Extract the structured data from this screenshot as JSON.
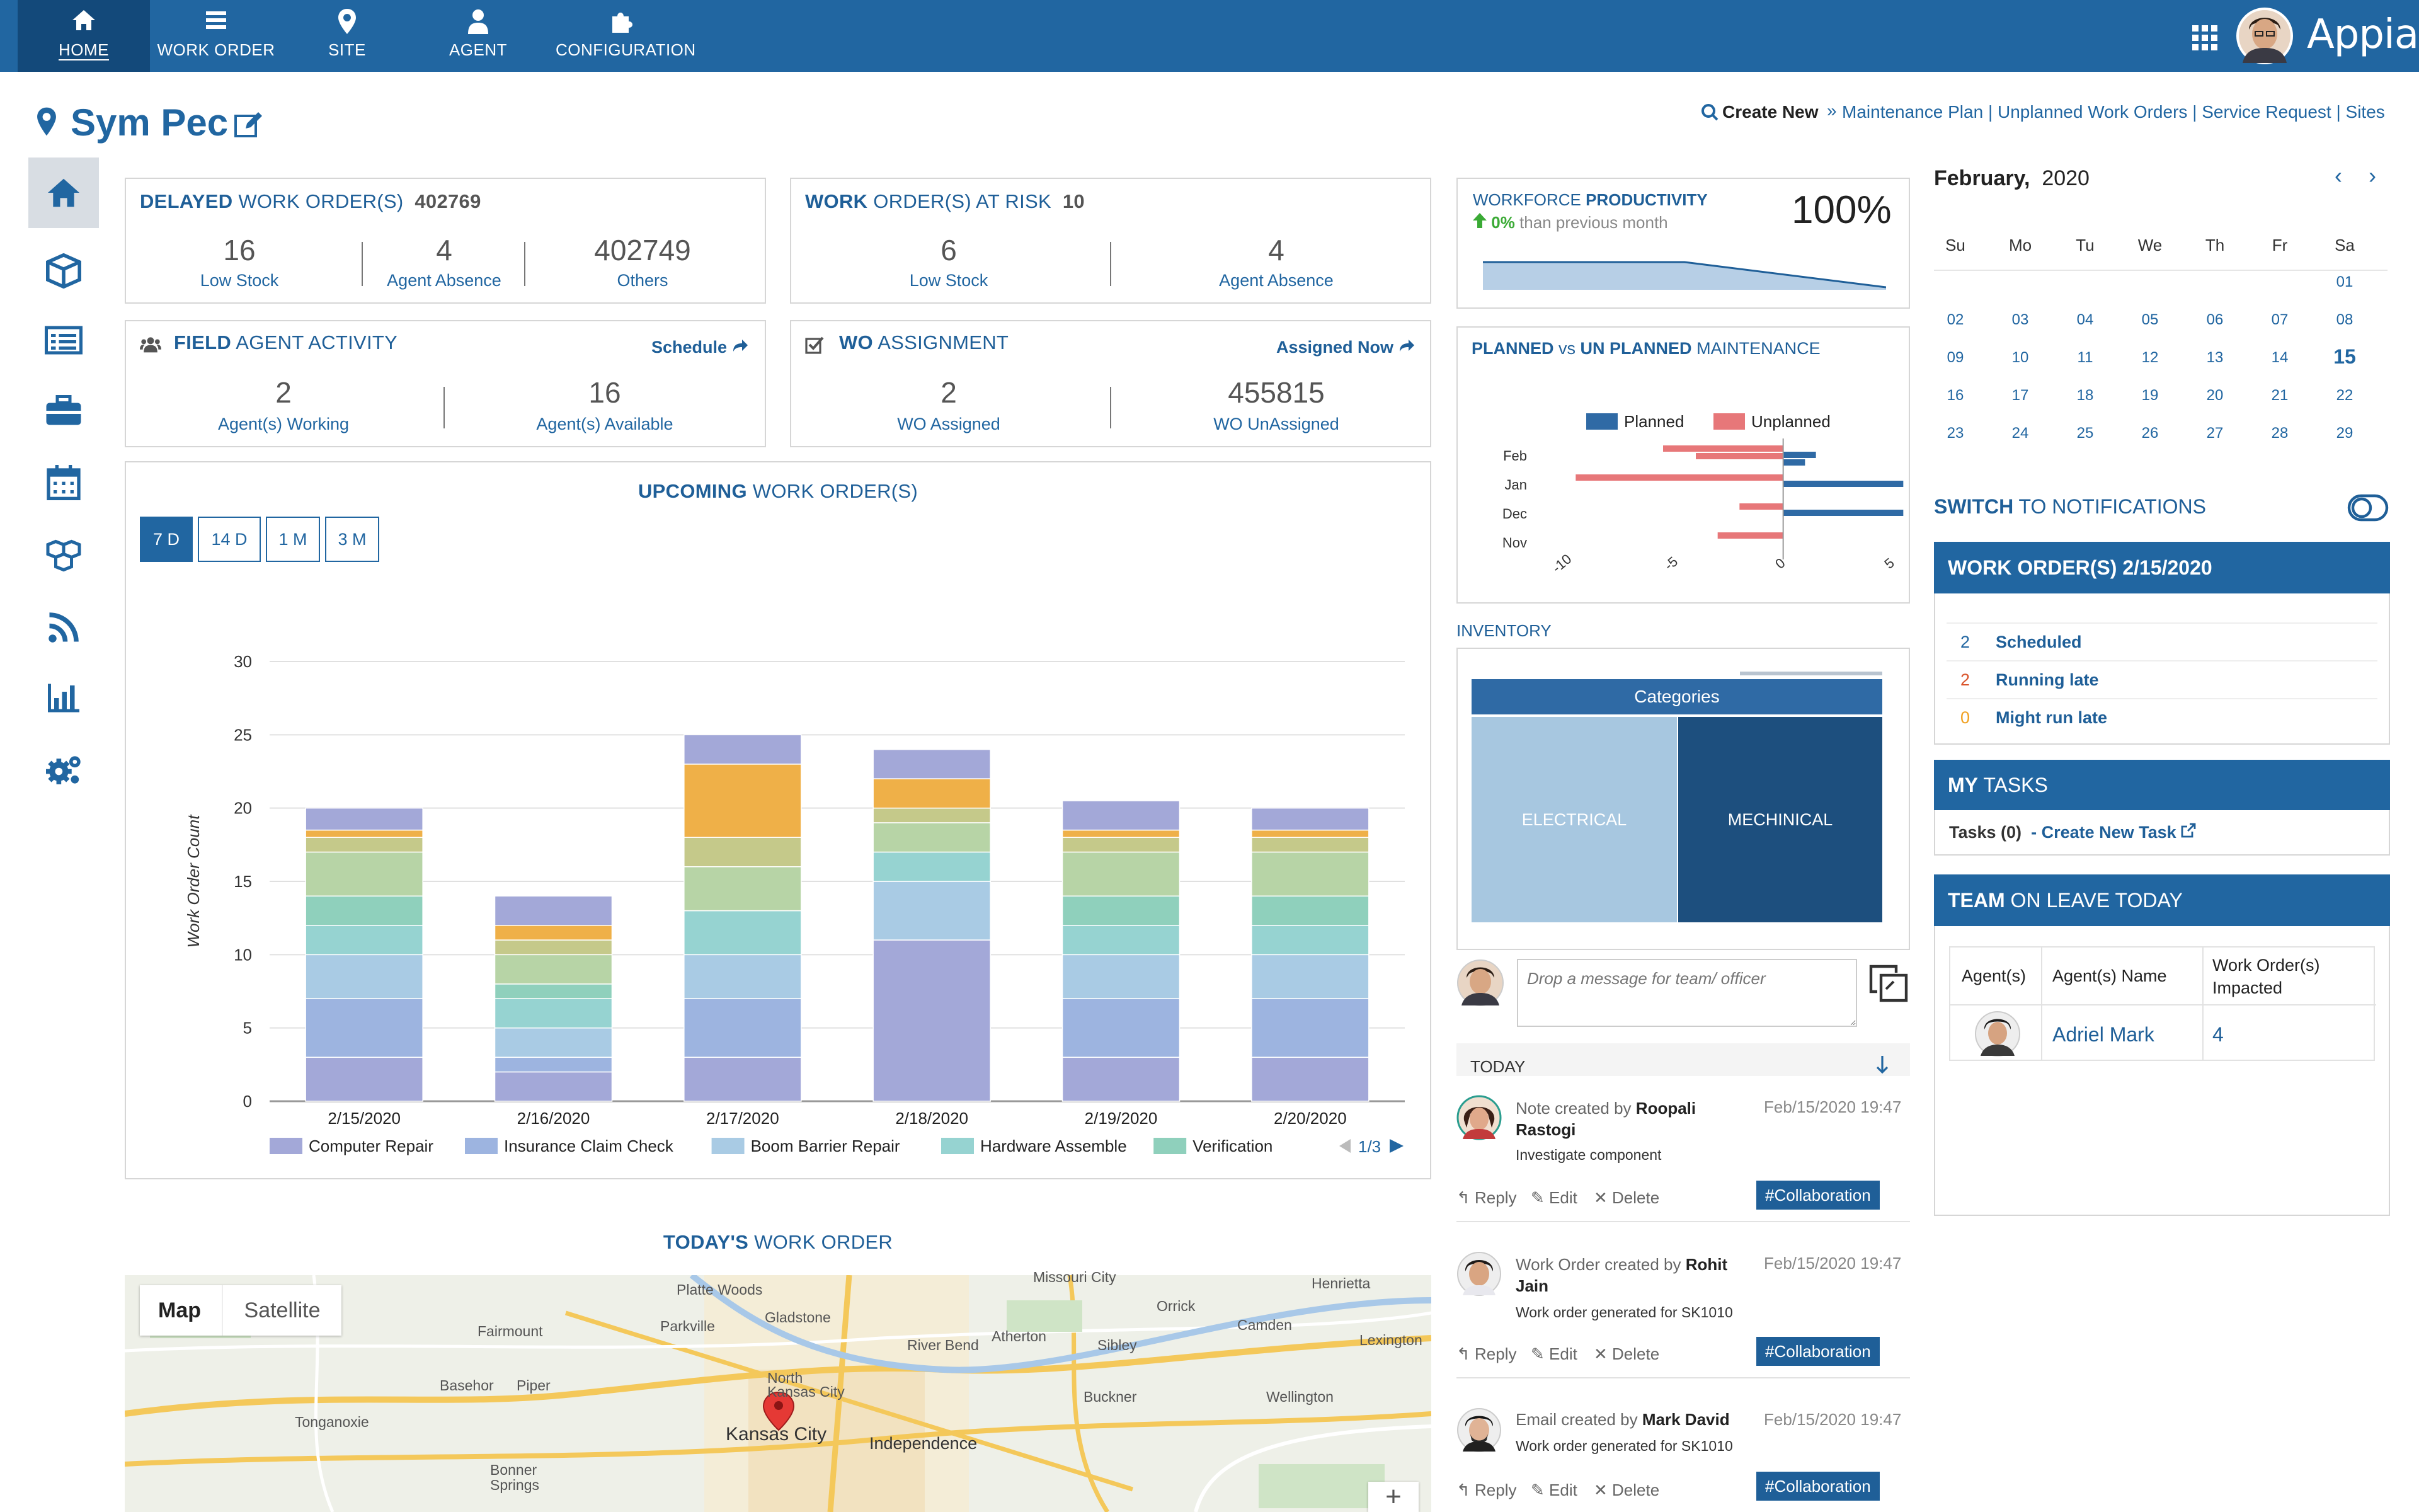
{
  "nav": {
    "items": [
      {
        "label": "HOME",
        "icon": "home-icon"
      },
      {
        "label": "WORK ORDER",
        "icon": "list-icon"
      },
      {
        "label": "SITE",
        "icon": "location-pin-icon"
      },
      {
        "label": "AGENT",
        "icon": "person-icon"
      },
      {
        "label": "CONFIGURATION",
        "icon": "puzzle-icon"
      }
    ],
    "brand": "Appian"
  },
  "site": {
    "title": "Sym Pec"
  },
  "create": {
    "label": "Create New",
    "sep": "»",
    "links": [
      "Maintenance Plan",
      "Unplanned Work Orders",
      "Service Request",
      "Sites"
    ],
    "pipe": "|"
  },
  "delayed": {
    "title_bold": "DELAYED",
    "title_rest": "WORK ORDER(S)",
    "total": "402769",
    "stats": [
      {
        "value": "16",
        "label": "Low Stock"
      },
      {
        "value": "4",
        "label": "Agent Absence"
      },
      {
        "value": "402749",
        "label": "Others"
      }
    ]
  },
  "atrisk": {
    "title_bold": "WORK",
    "title_rest": "ORDER(S) AT RISK",
    "total": "10",
    "stats": [
      {
        "value": "6",
        "label": "Low Stock"
      },
      {
        "value": "4",
        "label": "Agent Absence"
      }
    ]
  },
  "field": {
    "title_bold": "FIELD",
    "title_rest": "AGENT ACTIVITY",
    "action": "Schedule",
    "stats": [
      {
        "value": "2",
        "label": "Agent(s) Working"
      },
      {
        "value": "16",
        "label": "Agent(s) Available"
      }
    ]
  },
  "assign": {
    "title_bold": "WO",
    "title_rest": "ASSIGNMENT",
    "action": "Assigned Now",
    "stats": [
      {
        "value": "2",
        "label": "WO Assigned"
      },
      {
        "value": "455815",
        "label": "WO UnAssigned"
      }
    ]
  },
  "upcoming": {
    "title_bold": "UPCOMING",
    "title_rest": "WORK ORDER(S)",
    "tabs": [
      "7 D",
      "14 D",
      "1 M",
      "3 M"
    ],
    "pager": "1/3"
  },
  "chart_data": [
    {
      "type": "bar",
      "stacked": true,
      "ylabel": "Work Order Count",
      "ylim": [
        0,
        30
      ],
      "yticks": [
        0,
        5,
        10,
        15,
        20,
        25,
        30
      ],
      "categories": [
        "2/15/2020",
        "2/16/2020",
        "2/17/2020",
        "2/18/2020",
        "2/19/2020",
        "2/20/2020"
      ],
      "legend_position": "bottom",
      "grid": true,
      "series": [
        {
          "name": "Computer Repair",
          "color": "#a3a8d8",
          "values": [
            3,
            2,
            3,
            11,
            3,
            3
          ]
        },
        {
          "name": "Insurance Claim Check",
          "color": "#9db4e0",
          "values": [
            4,
            1,
            4,
            0,
            4,
            4
          ]
        },
        {
          "name": "Boom Barrier Repair",
          "color": "#a9cbe4",
          "values": [
            3,
            2,
            3,
            4,
            3,
            3
          ]
        },
        {
          "name": "Hardware Assemble",
          "color": "#96d3d1",
          "values": [
            2,
            2,
            3,
            2,
            2,
            2
          ]
        },
        {
          "name": "Verification",
          "color": "#8fd0bc",
          "values": [
            2,
            1,
            0,
            0,
            2,
            2
          ]
        },
        {
          "name": "",
          "color": "#b7d4a6",
          "values": [
            3,
            2,
            3,
            2,
            3,
            3
          ]
        },
        {
          "name": "",
          "color": "#c5c98a",
          "values": [
            1,
            1,
            2,
            1,
            1,
            1
          ]
        },
        {
          "name": "",
          "color": "#efb048",
          "values": [
            0.5,
            1,
            5,
            2,
            0.5,
            0.5
          ]
        },
        {
          "name": "",
          "color": "#a3a8d8",
          "values": [
            1.5,
            2,
            2,
            2,
            2,
            1.5
          ]
        }
      ]
    },
    {
      "type": "bar",
      "orientation": "horizontal",
      "title_bold_1": "PLANNED",
      "title_mid": "vs",
      "title_bold_2": "UN PLANNED",
      "title_rest": "MAINTENANCE",
      "categories": [
        "Feb",
        "Jan",
        "Dec",
        "Nov"
      ],
      "xlim": [
        -10,
        5
      ],
      "xticks": [
        -10,
        -5,
        0,
        5
      ],
      "legend_position": "top",
      "series": [
        {
          "name": "Planned",
          "color": "#2f6aa5",
          "values": [
            [
              1.5,
              1.0
            ],
            [
              5.5
            ],
            [
              5.5
            ],
            [
              0
            ]
          ]
        },
        {
          "name": "Unplanned",
          "color": "#e77779",
          "values": [
            [
              -5.5,
              -4.0
            ],
            [
              -9.5
            ],
            [
              -2.0
            ],
            [
              -3.0
            ]
          ]
        }
      ]
    }
  ],
  "productivity": {
    "title_rest": "WORKFORCE",
    "title_bold": "PRODUCTIVITY",
    "change": "0%",
    "change_text": "than previous month",
    "value": "100%"
  },
  "inventory": {
    "label": "INVENTORY",
    "header": "Categories",
    "cells": [
      "ELECTRICAL",
      "MECHINICAL"
    ]
  },
  "calendar": {
    "month": "February,",
    "year": "2020",
    "days_of_week": [
      "Su",
      "Mo",
      "Tu",
      "We",
      "Th",
      "Fr",
      "Sa"
    ],
    "weeks": [
      [
        "",
        "",
        "",
        "",
        "",
        "",
        "01"
      ],
      [
        "02",
        "03",
        "04",
        "05",
        "06",
        "07",
        "08"
      ],
      [
        "09",
        "10",
        "11",
        "12",
        "13",
        "14",
        "15"
      ],
      [
        "16",
        "17",
        "18",
        "19",
        "20",
        "21",
        "22"
      ],
      [
        "23",
        "24",
        "25",
        "26",
        "27",
        "28",
        "29"
      ]
    ]
  },
  "switch": {
    "bold": "SWITCH",
    "rest": "TO NOTIFICATIONS"
  },
  "wo_day": {
    "title": "WORK ORDER(S) 2/15/2020",
    "items": [
      {
        "count": "2",
        "label": "Scheduled",
        "color": "#2166a1"
      },
      {
        "count": "2",
        "label": "Running late",
        "color": "#d9542b"
      },
      {
        "count": "0",
        "label": "Might run late",
        "color": "#f0a020"
      }
    ]
  },
  "tasks": {
    "title_bold": "MY",
    "title_rest": "TASKS",
    "count": "Tasks (0)",
    "sep": "-",
    "link": "Create New Task"
  },
  "leave": {
    "title_bold": "TEAM",
    "title_rest": "ON LEAVE TODAY",
    "headers": [
      "Agent(s)",
      "Agent(s) Name",
      "Work Order(s) Impacted"
    ],
    "rows": [
      {
        "name": "Adriel Mark",
        "count": "4"
      }
    ]
  },
  "message": {
    "placeholder": "Drop a message for team/ officer"
  },
  "feed": {
    "today": "TODAY",
    "items": [
      {
        "prefix": "Note created by",
        "author": "Roopali Rastogi",
        "text": "Investigate component",
        "date": "Feb/15/2020 19:47",
        "tag": "#Collaboration"
      },
      {
        "prefix": "Work Order created by",
        "author": "Rohit Jain",
        "text": "Work order generated for SK1010",
        "date": "Feb/15/2020 19:47",
        "tag": "#Collaboration"
      },
      {
        "prefix": "Email created by",
        "author": "Mark David",
        "text": "Work order generated for SK1010",
        "date": "Feb/15/2020 19:47",
        "tag": "#Collaboration"
      }
    ],
    "actions": [
      "Reply",
      "Edit",
      "Delete"
    ]
  },
  "todays": {
    "title_bold": "TODAY'S",
    "title_rest": "WORK ORDER"
  },
  "map": {
    "tabs": [
      "Map",
      "Satellite"
    ],
    "places": [
      "Platte Woods",
      "Gladstone",
      "Missouri City",
      "Henrietta",
      "Parkville",
      "Orrick",
      "Fairmount",
      "River Bend",
      "Atherton",
      "Camden",
      "Lexington",
      "Sibley",
      "North",
      "Kansas City",
      "Basehor",
      "Piper",
      "Buckner",
      "Wellington",
      "Tonganoxie",
      "Independence",
      "Bonner",
      "Springs",
      "Kansas City"
    ],
    "zoom_in": "+"
  },
  "colors": {
    "primary": "#2166a1",
    "dark": "#13497a"
  }
}
